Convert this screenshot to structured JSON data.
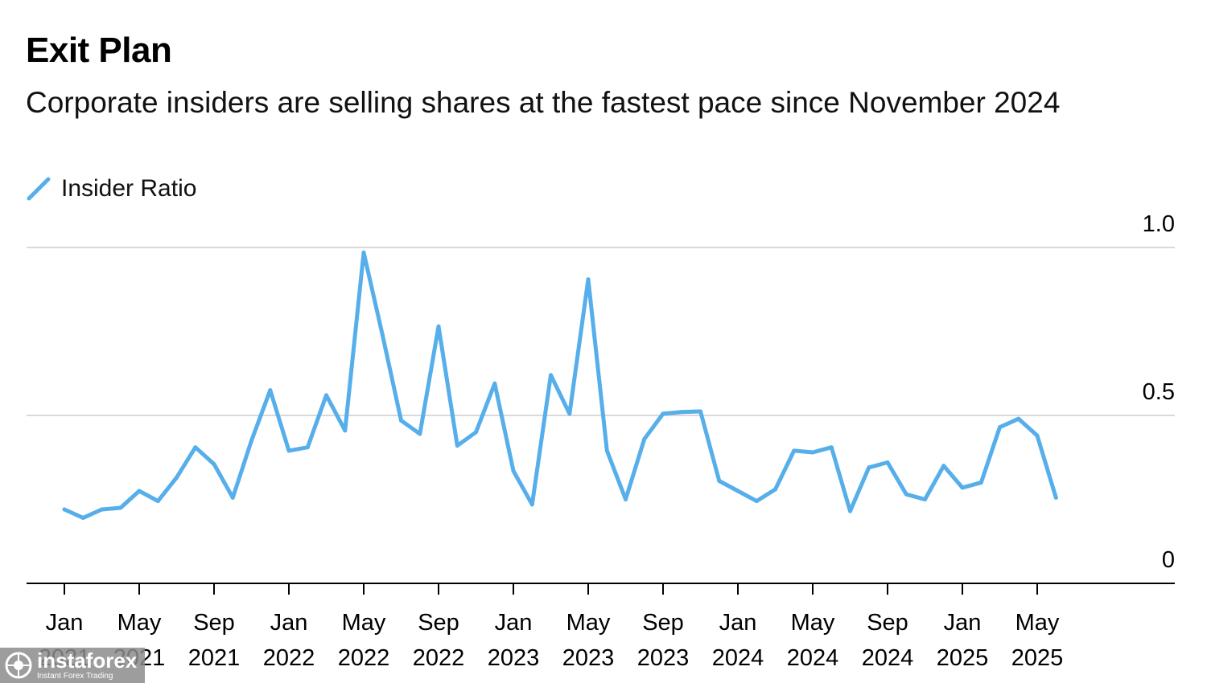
{
  "title": "Exit Plan",
  "subtitle": "Corporate insiders are selling shares at the fastest pace since November 2024",
  "legend": {
    "label": "Insider Ratio"
  },
  "watermark": {
    "name": "instaforex",
    "tagline": "Instant Forex Trading"
  },
  "colors": {
    "series": "#56aeea",
    "grid": "#d9d9d9",
    "axis": "#000000",
    "text": "#000000"
  },
  "chart_data": {
    "type": "line",
    "title": "Exit Plan",
    "subtitle": "Corporate insiders are selling shares at the fastest pace since November 2024",
    "xlabel": "",
    "ylabel": "",
    "ylim": [
      0,
      1.0
    ],
    "yticks": [
      "0",
      "0.5",
      "1.0"
    ],
    "ytick_values": [
      0,
      0.5,
      1.0
    ],
    "y_axis_side": "right",
    "grid": true,
    "legend_position": "top-left",
    "x_tick_labels": [
      [
        "Jan",
        "2021"
      ],
      [
        "May",
        "2021"
      ],
      [
        "Sep",
        "2021"
      ],
      [
        "Jan",
        "2022"
      ],
      [
        "May",
        "2022"
      ],
      [
        "Sep",
        "2022"
      ],
      [
        "Jan",
        "2023"
      ],
      [
        "May",
        "2023"
      ],
      [
        "Sep",
        "2023"
      ],
      [
        "Jan",
        "2024"
      ],
      [
        "May",
        "2024"
      ],
      [
        "Sep",
        "2024"
      ],
      [
        "Jan",
        "2025"
      ],
      [
        "May",
        "2025"
      ]
    ],
    "series": [
      {
        "name": "Insider Ratio",
        "color": "#56aeea",
        "x": [
          "2021-01",
          "2021-02",
          "2021-03",
          "2021-04",
          "2021-05",
          "2021-06",
          "2021-07",
          "2021-08",
          "2021-09",
          "2021-10",
          "2021-11",
          "2021-12",
          "2022-01",
          "2022-02",
          "2022-03",
          "2022-04",
          "2022-05",
          "2022-06",
          "2022-07",
          "2022-08",
          "2022-09",
          "2022-10",
          "2022-11",
          "2022-12",
          "2023-01",
          "2023-02",
          "2023-03",
          "2023-04",
          "2023-05",
          "2023-06",
          "2023-07",
          "2023-08",
          "2023-09",
          "2023-10",
          "2023-11",
          "2023-12",
          "2024-01",
          "2024-02",
          "2024-03",
          "2024-04",
          "2024-05",
          "2024-06",
          "2024-07",
          "2024-08",
          "2024-09",
          "2024-10",
          "2024-11",
          "2024-12",
          "2025-01",
          "2025-02",
          "2025-03",
          "2025-04",
          "2025-05",
          "2025-06"
        ],
        "values": [
          0.22,
          0.195,
          0.22,
          0.225,
          0.275,
          0.245,
          0.315,
          0.405,
          0.355,
          0.255,
          0.425,
          0.575,
          0.395,
          0.405,
          0.56,
          0.455,
          0.985,
          0.74,
          0.485,
          0.445,
          0.765,
          0.41,
          0.45,
          0.595,
          0.335,
          0.235,
          0.62,
          0.505,
          0.905,
          0.395,
          0.25,
          0.43,
          0.505,
          0.51,
          0.512,
          0.305,
          0.275,
          0.245,
          0.28,
          0.395,
          0.39,
          0.405,
          0.215,
          0.345,
          0.36,
          0.265,
          0.25,
          0.35,
          0.285,
          0.3,
          0.465,
          0.49,
          0.44,
          0.255
        ]
      }
    ]
  }
}
